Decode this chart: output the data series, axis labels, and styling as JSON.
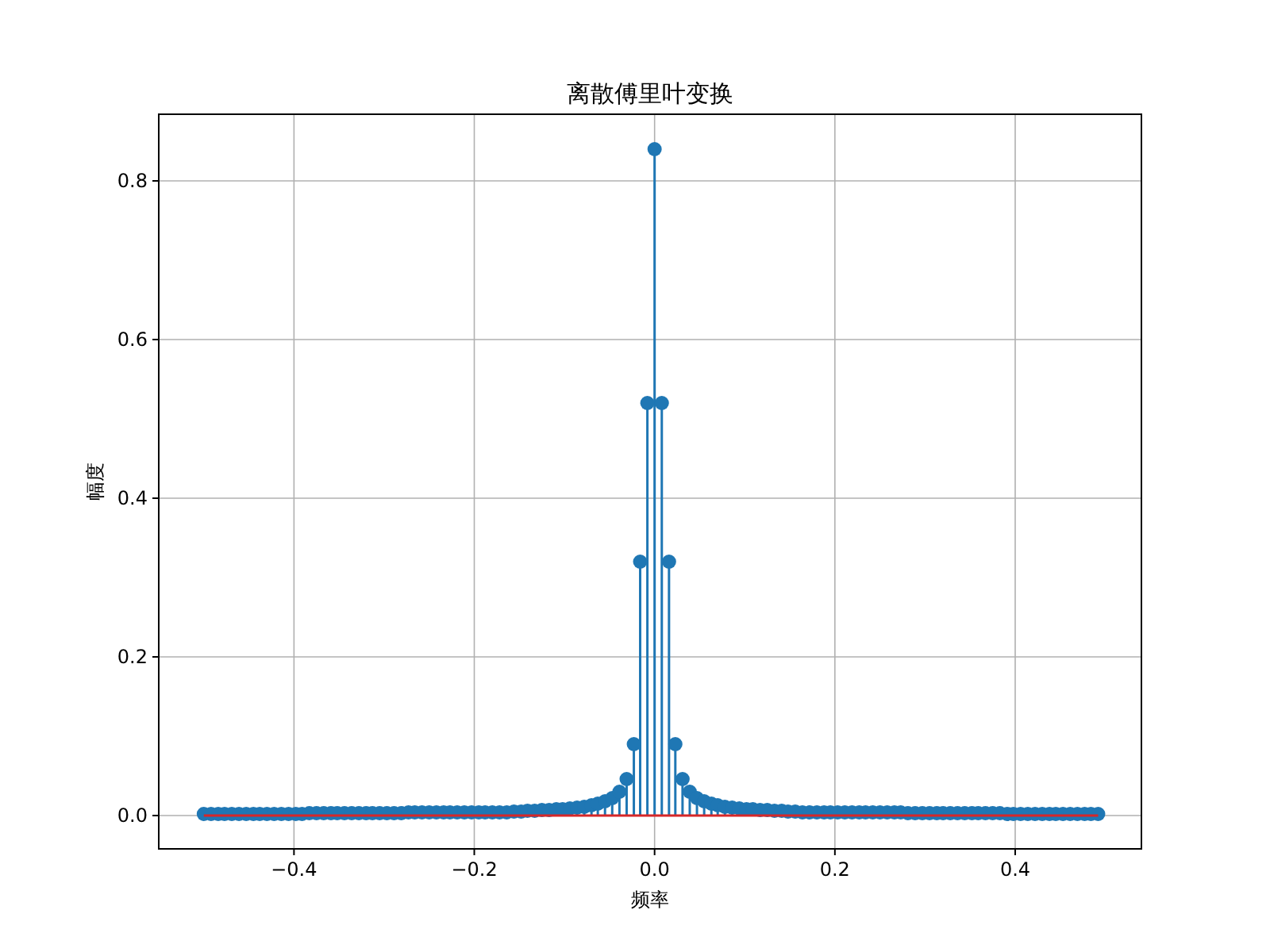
{
  "chart_data": {
    "type": "lollipop",
    "title": "离散傅里叶变换",
    "xlabel": "频率",
    "ylabel": "幅度",
    "x": [
      -0.5,
      -0.492,
      -0.484,
      -0.477,
      -0.469,
      -0.461,
      -0.453,
      -0.445,
      -0.438,
      -0.43,
      -0.422,
      -0.414,
      -0.406,
      -0.398,
      -0.391,
      -0.383,
      -0.375,
      -0.367,
      -0.359,
      -0.352,
      -0.344,
      -0.336,
      -0.328,
      -0.32,
      -0.313,
      -0.305,
      -0.297,
      -0.289,
      -0.281,
      -0.273,
      -0.266,
      -0.258,
      -0.25,
      -0.242,
      -0.234,
      -0.227,
      -0.219,
      -0.211,
      -0.203,
      -0.195,
      -0.188,
      -0.18,
      -0.172,
      -0.164,
      -0.156,
      -0.148,
      -0.141,
      -0.133,
      -0.125,
      -0.117,
      -0.109,
      -0.102,
      -0.094,
      -0.086,
      -0.078,
      -0.07,
      -0.063,
      -0.055,
      -0.047,
      -0.039,
      -0.031,
      -0.023,
      -0.016,
      -0.008,
      0,
      0.008,
      0.016,
      0.023,
      0.031,
      0.039,
      0.047,
      0.055,
      0.063,
      0.07,
      0.078,
      0.086,
      0.094,
      0.102,
      0.109,
      0.117,
      0.125,
      0.133,
      0.141,
      0.148,
      0.156,
      0.164,
      0.172,
      0.18,
      0.188,
      0.195,
      0.203,
      0.211,
      0.219,
      0.227,
      0.234,
      0.242,
      0.25,
      0.258,
      0.266,
      0.273,
      0.281,
      0.289,
      0.297,
      0.305,
      0.313,
      0.32,
      0.328,
      0.336,
      0.344,
      0.352,
      0.359,
      0.367,
      0.375,
      0.383,
      0.391,
      0.398,
      0.406,
      0.414,
      0.422,
      0.43,
      0.438,
      0.445,
      0.453,
      0.461,
      0.469,
      0.477,
      0.484,
      0.492
    ],
    "series": [
      {
        "color": "#1f77b4",
        "values": [
          0.002,
          0.002,
          0.002,
          0.002,
          0.002,
          0.002,
          0.002,
          0.002,
          0.002,
          0.002,
          0.002,
          0.002,
          0.002,
          0.002,
          0.002,
          0.003,
          0.003,
          0.003,
          0.003,
          0.003,
          0.003,
          0.003,
          0.003,
          0.003,
          0.003,
          0.003,
          0.003,
          0.003,
          0.003,
          0.004,
          0.004,
          0.004,
          0.004,
          0.004,
          0.004,
          0.004,
          0.004,
          0.004,
          0.004,
          0.004,
          0.004,
          0.004,
          0.004,
          0.004,
          0.005,
          0.005,
          0.006,
          0.006,
          0.007,
          0.007,
          0.008,
          0.008,
          0.009,
          0.01,
          0.011,
          0.013,
          0.015,
          0.018,
          0.022,
          0.03,
          0.046,
          0.09,
          0.32,
          0.52,
          0.84,
          0.52,
          0.32,
          0.09,
          0.046,
          0.03,
          0.022,
          0.018,
          0.015,
          0.013,
          0.011,
          0.01,
          0.009,
          0.008,
          0.008,
          0.007,
          0.007,
          0.006,
          0.006,
          0.005,
          0.005,
          0.004,
          0.004,
          0.004,
          0.004,
          0.004,
          0.004,
          0.004,
          0.004,
          0.004,
          0.004,
          0.004,
          0.004,
          0.004,
          0.004,
          0.004,
          0.003,
          0.003,
          0.003,
          0.003,
          0.003,
          0.003,
          0.003,
          0.003,
          0.003,
          0.003,
          0.003,
          0.003,
          0.003,
          0.003,
          0.002,
          0.002,
          0.002,
          0.002,
          0.002,
          0.002,
          0.002,
          0.002,
          0.002,
          0.002,
          0.002,
          0.002,
          0.002,
          0.002
        ]
      }
    ],
    "xlim": [
      -0.55,
      0.54
    ],
    "ylim": [
      -0.042,
      0.884
    ],
    "xticks": [
      {
        "value": -0.4,
        "label": "−0.4"
      },
      {
        "value": -0.2,
        "label": "−0.2"
      },
      {
        "value": 0,
        "label": "0.0"
      },
      {
        "value": 0.2,
        "label": "0.2"
      },
      {
        "value": 0.4,
        "label": "0.4"
      }
    ],
    "yticks": [
      {
        "value": 0,
        "label": "0.0"
      },
      {
        "value": 0.2,
        "label": "0.2"
      },
      {
        "value": 0.4,
        "label": "0.4"
      },
      {
        "value": 0.6,
        "label": "0.6"
      },
      {
        "value": 0.8,
        "label": "0.8"
      }
    ],
    "ref_lines": [
      {
        "axis": "y",
        "value": 0,
        "color": "#d62728"
      }
    ],
    "grid": true,
    "marker": "circle"
  }
}
